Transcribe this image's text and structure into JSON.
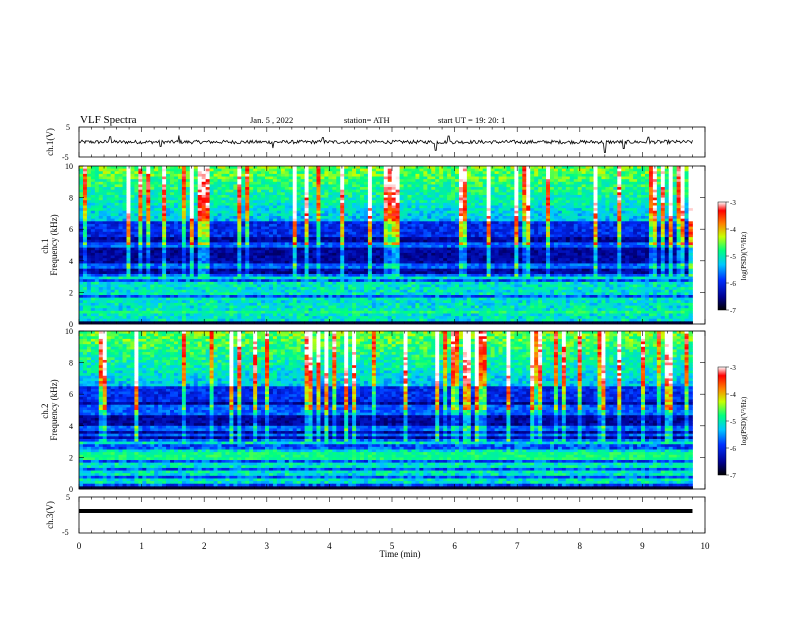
{
  "header": {
    "title": "VLF  Spectra",
    "date": "Jan.  5  ,  2022",
    "station": "station= ATH",
    "start": "start  UT  =    19: 20: 1"
  },
  "chart_data": [
    {
      "type": "line",
      "ylabel": "ch.1(V)",
      "ylim": [
        -5,
        5
      ],
      "y_ticks": [
        "5",
        "-5"
      ],
      "x_ticks": [
        "0",
        "1",
        "2",
        "3",
        "4",
        "5",
        "6",
        "7",
        "8",
        "9",
        "10"
      ],
      "xlim": [
        0,
        10
      ],
      "baseline_value": 0,
      "noise_amplitude_v": 0.6,
      "spikes": [
        {
          "t": 0.5,
          "v": 1.8
        },
        {
          "t": 1.3,
          "v": -1.5
        },
        {
          "t": 1.6,
          "v": 2.2
        },
        {
          "t": 3.1,
          "v": -2.0
        },
        {
          "t": 3.9,
          "v": 1.5
        },
        {
          "t": 5.7,
          "v": -2.8
        },
        {
          "t": 5.9,
          "v": 2.0
        },
        {
          "t": 8.4,
          "v": -3.5
        },
        {
          "t": 8.7,
          "v": -2.2
        },
        {
          "t": 9.1,
          "v": 1.6
        }
      ],
      "data_extent": [
        0,
        9.8
      ]
    },
    {
      "type": "heatmap",
      "channel": "ch.1",
      "ylabel": "ch.1\nFrequency  (kHz)",
      "ylim": [
        0,
        10
      ],
      "y_ticks": [
        "0",
        "2",
        "4",
        "6",
        "8",
        "10"
      ],
      "xlim": [
        0,
        10
      ],
      "data_extent": [
        0,
        9.8
      ],
      "colorbar": {
        "label": "log(PSD)(V²/Hz)",
        "range": [
          -7,
          -3
        ],
        "ticks": [
          "-3",
          "-4",
          "-5",
          "-6",
          "-7"
        ]
      },
      "bands_khz": [
        0.3,
        0.6,
        0.9,
        1.2,
        1.5,
        2.0,
        2.3,
        2.6,
        3.0,
        3.7,
        5.0
      ],
      "bright_band_khz": [
        0.6,
        0.9
      ]
    },
    {
      "type": "heatmap",
      "channel": "ch.2",
      "ylabel": "ch.2\nFrequency  (kHz)",
      "ylim": [
        0,
        10
      ],
      "y_ticks": [
        "0",
        "2",
        "4",
        "6",
        "8",
        "10"
      ],
      "xlim": [
        0,
        10
      ],
      "data_extent": [
        0,
        9.8
      ],
      "colorbar": {
        "label": "log(PSD)(V²/Hz)",
        "range": [
          -7,
          -3
        ],
        "ticks": [
          "-3",
          "-4",
          "-5",
          "-6",
          "-7"
        ]
      },
      "bands_khz": [
        0.5,
        1.0,
        1.5,
        2.0,
        2.4,
        3.0,
        3.4,
        3.8,
        4.8,
        5.2
      ],
      "bright_band_khz": [
        1.8,
        2.3
      ]
    },
    {
      "type": "line",
      "ylabel": "ch.3(V)",
      "ylim": [
        -5,
        5
      ],
      "y_ticks": [
        "5",
        "-5"
      ],
      "xlim": [
        0,
        10
      ],
      "x_ticks": [
        "0",
        "1",
        "2",
        "3",
        "4",
        "5",
        "6",
        "7",
        "8",
        "9",
        "10"
      ],
      "xlabel": "Time  (min)",
      "constant_value": 0,
      "data_extent": [
        0,
        9.8
      ]
    }
  ]
}
